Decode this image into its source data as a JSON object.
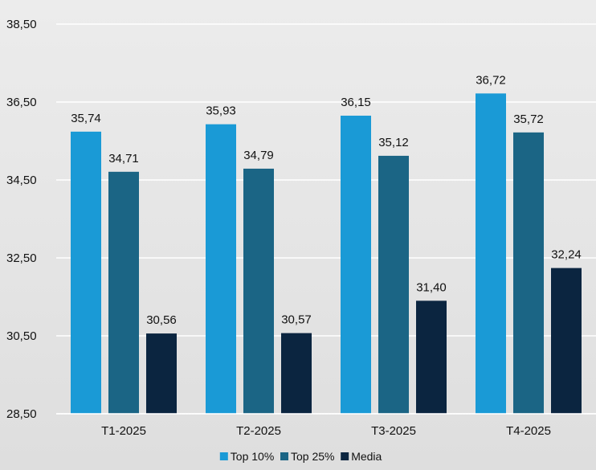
{
  "chart_data": {
    "type": "bar",
    "categories": [
      "T1-2025",
      "T2-2025",
      "T3-2025",
      "T4-2025"
    ],
    "series": [
      {
        "name": "Top 10%",
        "color": "#1a9ad6",
        "values": [
          35.74,
          35.93,
          36.15,
          36.72
        ],
        "labels": [
          "35,74",
          "35,93",
          "36,15",
          "36,72"
        ]
      },
      {
        "name": "Top 25%",
        "color": "#1b6585",
        "values": [
          34.71,
          34.79,
          35.12,
          35.72
        ],
        "labels": [
          "34,71",
          "34,79",
          "35,12",
          "35,72"
        ]
      },
      {
        "name": "Media",
        "color": "#0b2540",
        "values": [
          30.56,
          30.57,
          31.4,
          32.24
        ],
        "labels": [
          "30,56",
          "30,57",
          "31,40",
          "32,24"
        ]
      }
    ],
    "ylim": [
      28.5,
      38.5
    ],
    "yticks": [
      38.5,
      36.5,
      34.5,
      32.5,
      30.5,
      28.5
    ],
    "ytick_labels": [
      "38,50",
      "36,50",
      "34,50",
      "32,50",
      "30,50",
      "28,50"
    ],
    "title": "",
    "xlabel": "",
    "ylabel": "",
    "grid": true,
    "legend_position": "bottom-center"
  }
}
